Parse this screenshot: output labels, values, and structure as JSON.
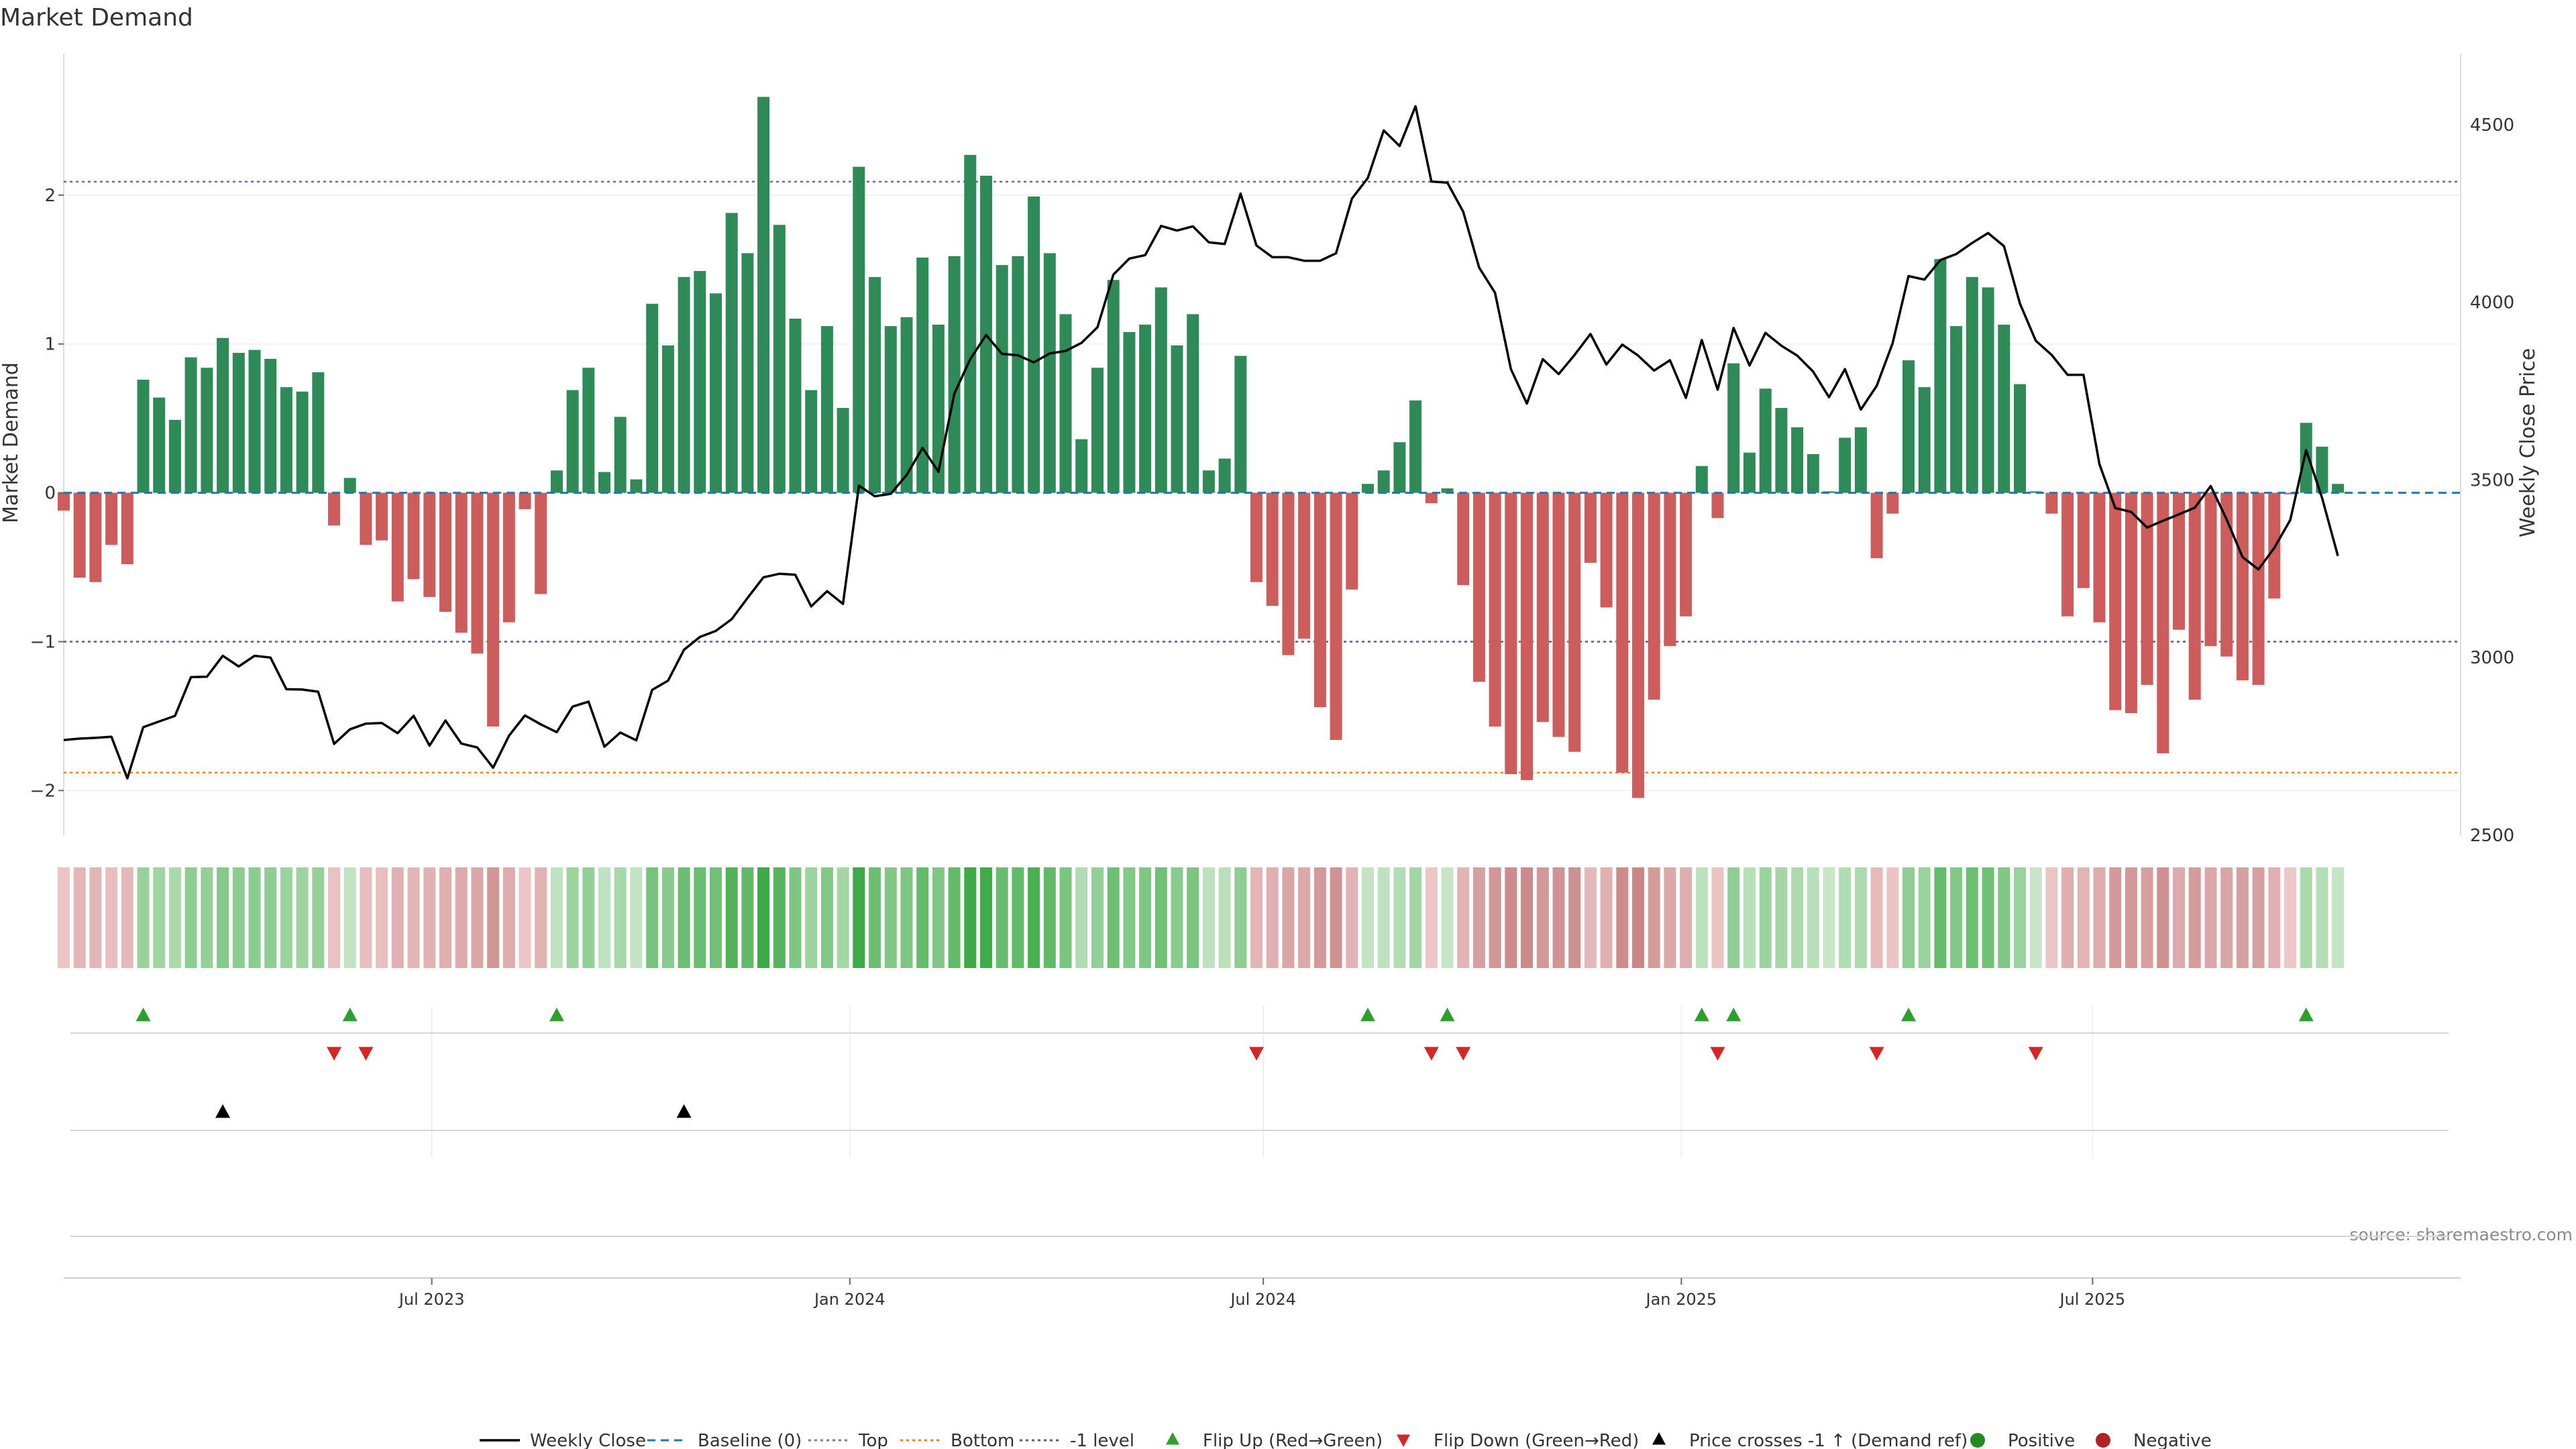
{
  "chart_data": {
    "type": "bar",
    "title": "Market Demand",
    "ylabel": "Market Demand",
    "y2label": "Weekly Close Price",
    "ylim": [
      -2.3,
      2.95
    ],
    "y2lim": [
      2500,
      4700
    ],
    "yticks": [
      {
        "v": 2,
        "t": "2"
      },
      {
        "v": 1,
        "t": "1"
      },
      {
        "v": 0,
        "t": "0"
      },
      {
        "v": -1,
        "t": "−1"
      },
      {
        "v": -2,
        "t": "−2"
      }
    ],
    "y2ticks": [
      2500,
      3000,
      3500,
      4000,
      4500
    ],
    "xlim": [
      "2023-01-20",
      "2025-12-10"
    ],
    "xticks": [
      {
        "date": "2023-07-01",
        "label": "Jul 2023"
      },
      {
        "date": "2024-01-01",
        "label": "Jan 2024"
      },
      {
        "date": "2024-07-01",
        "label": "Jul 2024"
      },
      {
        "date": "2025-01-01",
        "label": "Jan 2025"
      },
      {
        "date": "2025-07-01",
        "label": "Jul 2025"
      }
    ],
    "start_week": "2023-01-20",
    "demand": [
      -0.12,
      -0.57,
      -0.6,
      -0.35,
      -0.48,
      0.76,
      0.64,
      0.49,
      0.91,
      0.84,
      1.04,
      0.94,
      0.96,
      0.9,
      0.71,
      0.68,
      0.81,
      -0.22,
      0.1,
      -0.35,
      -0.32,
      -0.73,
      -0.58,
      -0.7,
      -0.8,
      -0.94,
      -1.08,
      -1.57,
      -0.87,
      -0.11,
      -0.68,
      0.15,
      0.69,
      0.84,
      0.14,
      0.51,
      0.09,
      1.27,
      0.99,
      1.45,
      1.49,
      1.34,
      1.88,
      1.61,
      2.66,
      1.8,
      1.17,
      0.69,
      1.12,
      0.57,
      2.19,
      1.45,
      1.12,
      1.18,
      1.58,
      1.13,
      1.59,
      2.27,
      2.13,
      1.53,
      1.59,
      1.99,
      1.61,
      1.2,
      0.36,
      0.84,
      1.43,
      1.08,
      1.13,
      1.38,
      0.99,
      1.2,
      0.15,
      0.23,
      0.92,
      -0.6,
      -0.76,
      -1.09,
      -0.98,
      -1.44,
      -1.66,
      -0.65,
      0.06,
      0.15,
      0.34,
      0.62,
      -0.07,
      0.03,
      -0.62,
      -1.27,
      -1.57,
      -1.89,
      -1.93,
      -1.54,
      -1.64,
      -1.74,
      -0.47,
      -0.77,
      -1.88,
      -2.05,
      -1.39,
      -1.03,
      -0.83,
      0.18,
      -0.17,
      0.87,
      0.27,
      0.7,
      0.57,
      0.44,
      0.26,
      0.01,
      0.37,
      0.44,
      -0.44,
      -0.14,
      0.89,
      0.71,
      1.57,
      1.12,
      1.45,
      1.38,
      1.13,
      0.73,
      0.01,
      -0.14,
      -0.83,
      -0.64,
      -0.87,
      -1.46,
      -1.48,
      -1.29,
      -1.75,
      -0.92,
      -1.39,
      -1.03,
      -1.1,
      -1.26,
      -1.29,
      -0.71,
      -0.01,
      0.47,
      0.31,
      0.06
    ],
    "close": [
      2768,
      2772,
      2774,
      2777,
      2660,
      2804,
      2820,
      2836,
      2945,
      2946,
      3005,
      2975,
      3005,
      3000,
      2911,
      2910,
      2904,
      2757,
      2798,
      2814,
      2816,
      2787,
      2836,
      2752,
      2823,
      2758,
      2747,
      2690,
      2780,
      2837,
      2812,
      2790,
      2862,
      2876,
      2749,
      2789,
      2767,
      2909,
      2935,
      3022,
      3058,
      3075,
      3108,
      3168,
      3226,
      3236,
      3233,
      3144,
      3187,
      3151,
      3484,
      3454,
      3461,
      3514,
      3590,
      3523,
      3743,
      3840,
      3908,
      3855,
      3851,
      3831,
      3856,
      3863,
      3886,
      3930,
      4078,
      4123,
      4133,
      4215,
      4202,
      4214,
      4169,
      4164,
      4306,
      4160,
      4127,
      4127,
      4117,
      4117,
      4138,
      4292,
      4350,
      4484,
      4440,
      4552,
      4340,
      4337,
      4255,
      4098,
      4027,
      3812,
      3715,
      3840,
      3798,
      3852,
      3911,
      3825,
      3881,
      3850,
      3808,
      3837,
      3731,
      3894,
      3754,
      3928,
      3822,
      3914,
      3878,
      3850,
      3805,
      3733,
      3812,
      3698,
      3765,
      3885,
      4074,
      4064,
      4119,
      4136,
      4167,
      4195,
      4158,
      3997,
      3892,
      3852,
      3796,
      3796,
      3545,
      3421,
      3410,
      3366,
      3385,
      3403,
      3422,
      3483,
      3389,
      3283,
      3248,
      3309,
      3387,
      3584,
      3450,
      3286
    ],
    "bottom_level": -1.88,
    "top_level": 2.09,
    "minus1_level": -1,
    "baseline": 0,
    "flip_up_weeks": [
      5,
      18,
      31,
      82,
      87,
      103,
      105,
      116,
      141
    ],
    "flip_down_weeks": [
      17,
      19,
      75,
      86,
      88,
      104,
      114,
      124
    ],
    "price_cross_weeks": [
      10,
      39
    ],
    "source": "source: sharemaestro.com",
    "legend": [
      {
        "label": "Weekly Close",
        "kind": "line",
        "color": "#000000"
      },
      {
        "label": "Baseline (0)",
        "kind": "dashed",
        "color": "#1f77b4"
      },
      {
        "label": "Top",
        "kind": "dotted",
        "color": "#7f7f7f"
      },
      {
        "label": "Bottom",
        "kind": "dotted",
        "color": "#ff7f0e"
      },
      {
        "label": "-1 level",
        "kind": "dotted",
        "color": "#5a5a8a"
      },
      {
        "label": "Flip Up (Red→Green)",
        "kind": "tri-up",
        "color": "#2ca02c"
      },
      {
        "label": "Flip Down (Green→Red)",
        "kind": "tri-down",
        "color": "#d62728"
      },
      {
        "label": "Price crosses -1 ↑ (Demand ref)",
        "kind": "tri-up",
        "color": "#000000"
      },
      {
        "label": "Positive",
        "kind": "dot",
        "color": "#228b22"
      },
      {
        "label": "Negative",
        "kind": "dot",
        "color": "#b22222"
      }
    ],
    "colors": {
      "positive": "#2e8b57",
      "negative": "#cd5c5c"
    }
  }
}
